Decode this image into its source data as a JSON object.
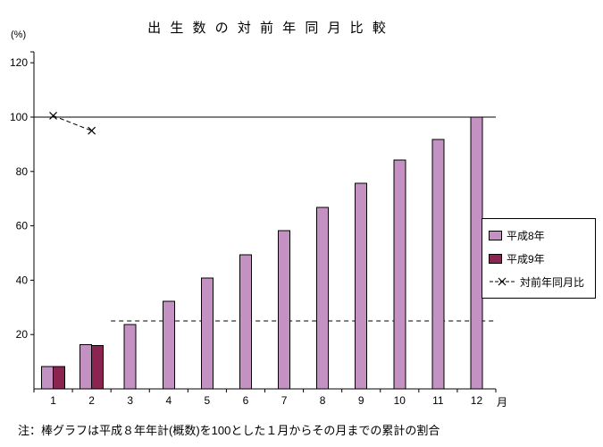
{
  "note": "注：棒グラフは平成８年年計(概数)を100とした１月からその月までの累計の割合",
  "chart_data": {
    "type": "bar+line",
    "title": "出 生 数 の 対 前 年 同 月 比 較",
    "y_unit": "(%)",
    "x_unit": "月",
    "categories": [
      "1",
      "2",
      "3",
      "4",
      "5",
      "6",
      "7",
      "8",
      "9",
      "10",
      "11",
      "12"
    ],
    "series": [
      {
        "name": "平成8年",
        "type": "bar",
        "color": "#C392C3",
        "values": [
          8.2,
          16.3,
          23.7,
          32.2,
          40.8,
          49.3,
          58.2,
          66.8,
          75.7,
          84.2,
          91.8,
          100
        ]
      },
      {
        "name": "平成9年",
        "type": "bar",
        "color": "#8C2452",
        "values": [
          8.2,
          15.9,
          null,
          null,
          null,
          null,
          null,
          null,
          null,
          null,
          null,
          null
        ]
      },
      {
        "name": "対前年同月比",
        "type": "line",
        "marker": "x",
        "color": "#000000",
        "values": [
          100.5,
          95,
          null,
          null,
          null,
          null,
          null,
          null,
          null,
          null,
          null,
          null
        ]
      }
    ],
    "ylim": [
      0,
      120
    ],
    "yticks": [
      20,
      40,
      60,
      80,
      100,
      120
    ],
    "reference_lines": [
      {
        "value": 100,
        "style": "solid",
        "from_month": 1
      },
      {
        "value": 25,
        "style": "dashed",
        "from_month": 3
      }
    ],
    "legend_position": "right",
    "grid": false
  }
}
